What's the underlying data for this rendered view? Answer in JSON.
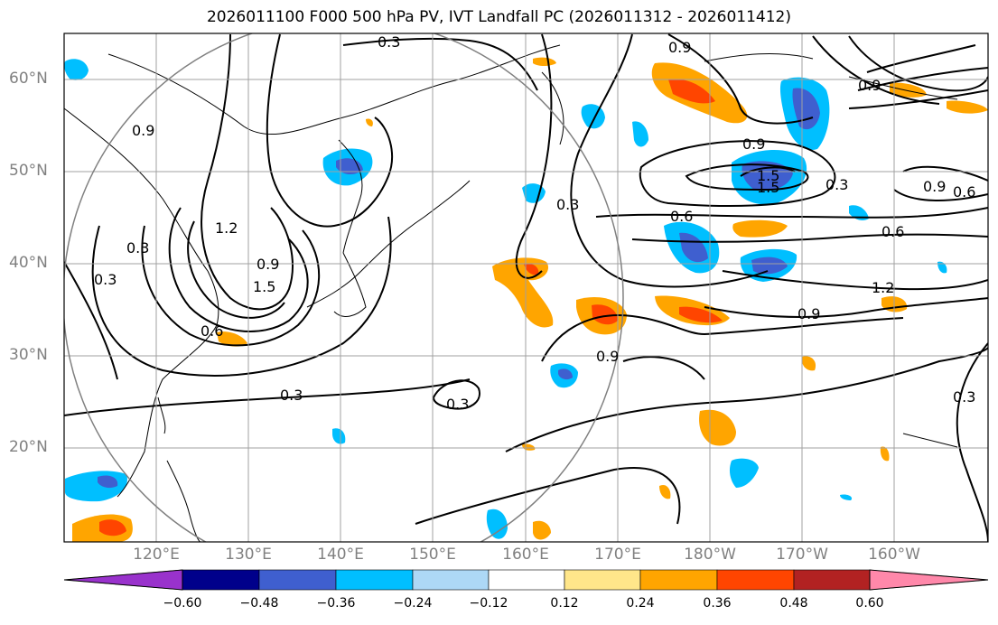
{
  "title": "2026011100 F000 500 hPa PV, IVT Landfall PC (2026011312 - 2026011412)",
  "map": {
    "lat_labels": [
      "60°N",
      "50°N",
      "40°N",
      "30°N",
      "20°N"
    ],
    "lon_labels": [
      "120°E",
      "130°E",
      "140°E",
      "150°E",
      "160°E",
      "170°E",
      "180°W",
      "170°W",
      "160°W"
    ],
    "contour_labels": [
      "0.3",
      "0.9",
      "0.9",
      "0.3",
      "1.5",
      "1.5",
      "1.2",
      "0.9",
      "0.6",
      "0.3",
      "0.6",
      "1.2",
      "0.9",
      "0.3",
      "0.3",
      "0.9",
      "0.3",
      "1.5",
      "0.9",
      "0.3",
      "0.6",
      "0.9",
      "0.6",
      "0.3",
      "0.9"
    ],
    "colors": {
      "gridline": "#a0a0a0",
      "contour": "#000000",
      "circle": "#808080"
    }
  },
  "colorbar": {
    "tick_labels": [
      "−0.60",
      "−0.48",
      "−0.36",
      "−0.24",
      "−0.12",
      "0.12",
      "0.24",
      "0.36",
      "0.48",
      "0.60"
    ],
    "colors": [
      "#9932cc",
      "#00008b",
      "#3f5fcf",
      "#00bfff",
      "#add8f6",
      "#ffffff",
      "#ffe68a",
      "#ffa500",
      "#ff4500",
      "#b22222",
      "#ff88aa"
    ]
  }
}
